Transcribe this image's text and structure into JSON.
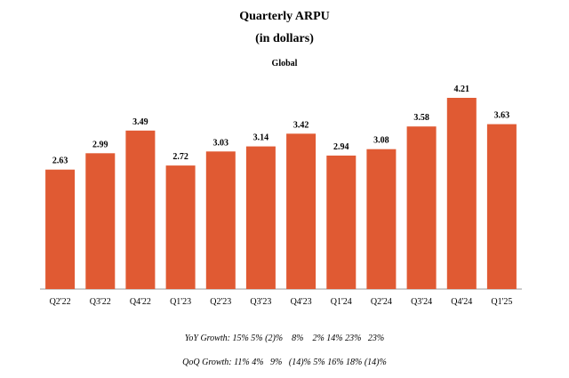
{
  "chart_data": {
    "type": "bar",
    "title": "Quarterly ARPU",
    "subtitle_units": "(in dollars)",
    "subtitle_region": "Global",
    "categories": [
      "Q2'22",
      "Q3'22",
      "Q4'22",
      "Q1'23",
      "Q2'23",
      "Q3'23",
      "Q4'23",
      "Q1'24",
      "Q2'24",
      "Q3'24",
      "Q4'24",
      "Q1'25"
    ],
    "values": [
      2.63,
      2.99,
      3.49,
      2.72,
      3.03,
      3.14,
      3.42,
      2.94,
      3.08,
      3.58,
      4.21,
      3.63
    ],
    "value_labels": [
      "2.63",
      "2.99",
      "3.49",
      "2.72",
      "3.03",
      "3.14",
      "3.42",
      "2.94",
      "3.08",
      "3.58",
      "4.21",
      "3.63"
    ],
    "ylim": [
      0,
      4.21
    ],
    "grid": false,
    "bar_color": "#e05a33"
  },
  "growth": {
    "yoy": "YoY Growth: 15% 5% (2)%    8%    2% 14% 23%   23%",
    "qoq": "QoQ Growth: 11% 4%   9%   (14)% 5% 16% 18% (14)%"
  }
}
